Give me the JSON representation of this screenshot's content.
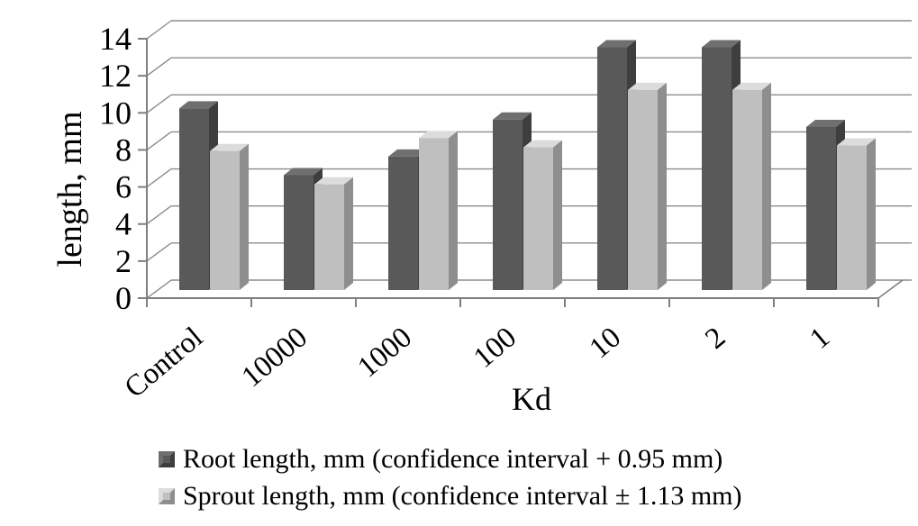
{
  "chart_data": {
    "type": "bar",
    "style": "3d-column",
    "title": "",
    "xlabel": "Kd",
    "ylabel": "length, mm",
    "ylim": [
      0,
      14
    ],
    "ytick_step": 2,
    "grid": true,
    "legend_position": "bottom",
    "background_color": "#ffffff",
    "grid_color": "#8c8c8c",
    "axis_color": "#7f7f7f",
    "text_color": "#000000",
    "categories": [
      "Control",
      "10000",
      "1000",
      "100",
      "10",
      "2",
      "1"
    ],
    "series": [
      {
        "name": "Root length, mm (confidence interval + 0.95 mm)",
        "values": [
          9.8,
          6.2,
          7.2,
          9.2,
          13.1,
          13.1,
          8.8
        ],
        "colors": {
          "front": "#595959",
          "top": "#6f6f6f",
          "side": "#3e3e3e"
        }
      },
      {
        "name": "Sprout length, mm (confidence interval ± 1.13 mm)",
        "values": [
          7.5,
          5.7,
          8.2,
          7.7,
          10.8,
          10.8,
          7.8
        ],
        "colors": {
          "front": "#bfbfbf",
          "top": "#dcdcdc",
          "side": "#8e8e8e"
        }
      }
    ]
  }
}
